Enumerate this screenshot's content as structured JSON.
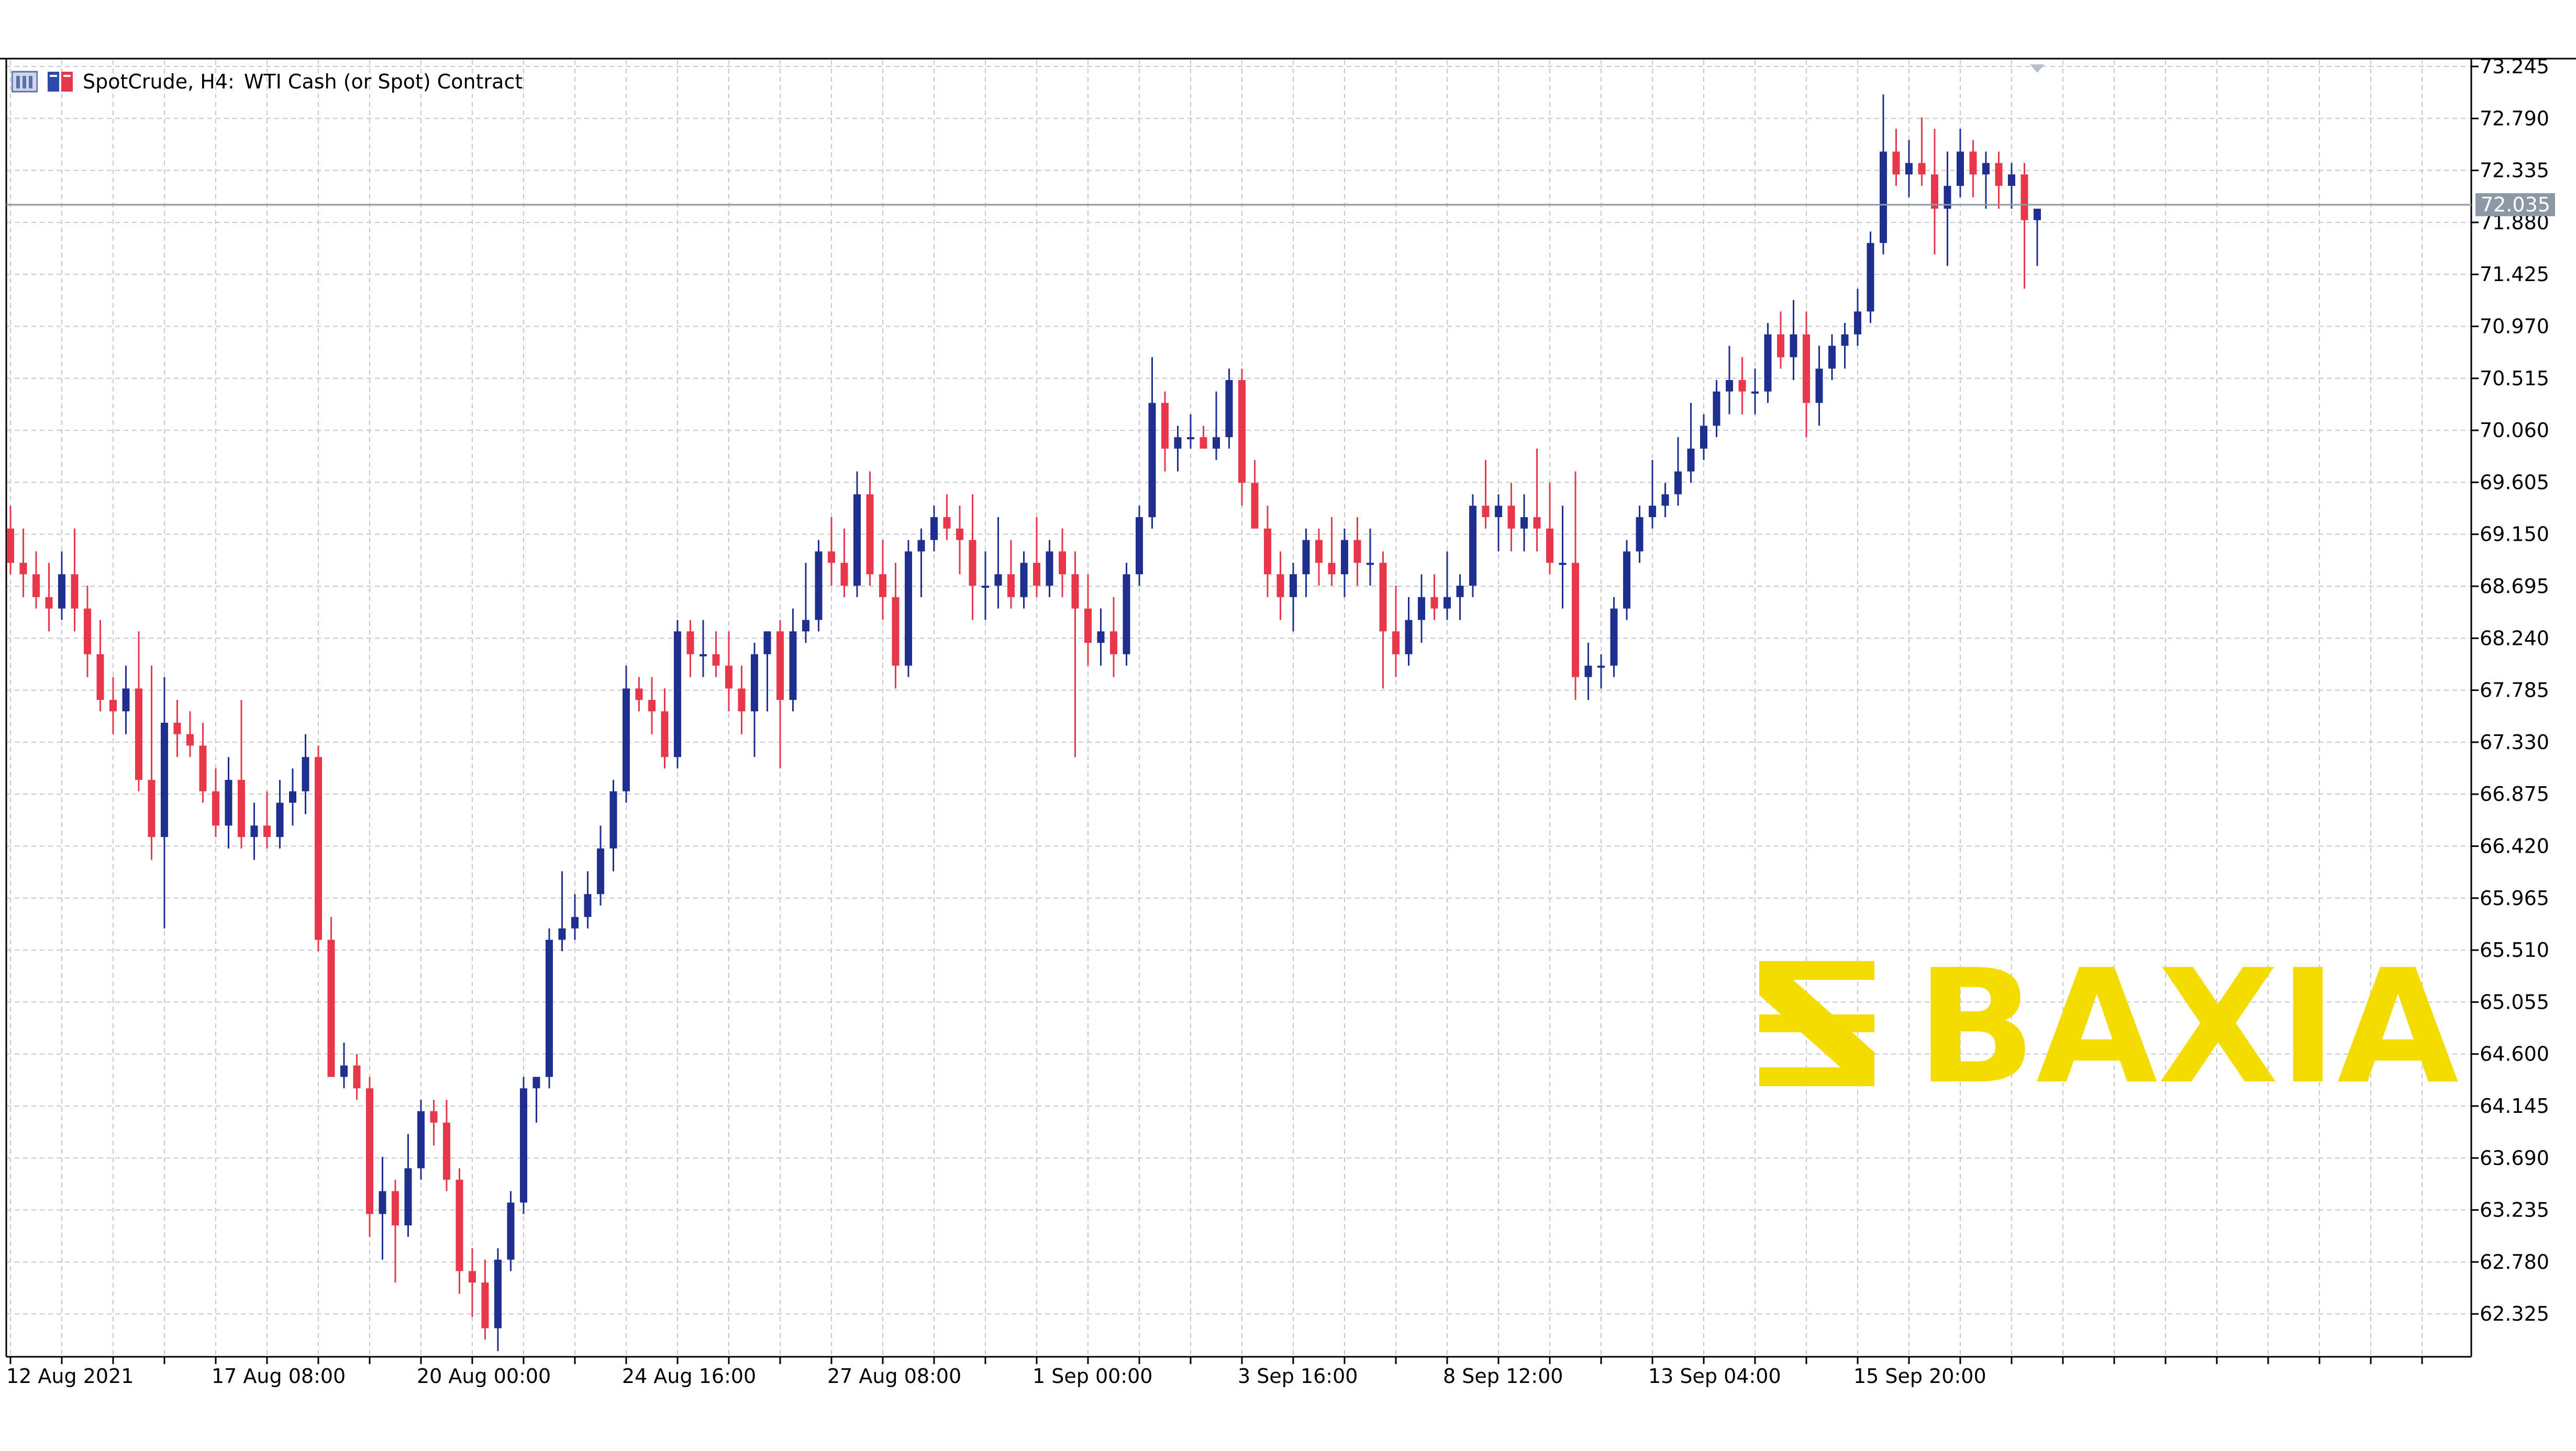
{
  "header": {
    "symbol": "SpotCrude, H4:",
    "description": "WTI Cash (or Spot) Contract"
  },
  "colors": {
    "bull": "#1f2f8f",
    "bear": "#e8364a",
    "grid": "#c6c9cc",
    "frame": "#000000",
    "price_line": "#8c98a4",
    "price_tag_bg": "#8c98a4",
    "watermark": "#f5dc00"
  },
  "watermark": {
    "text": "BAXIA",
    "icon": "baxia-logo-icon"
  },
  "current_price": {
    "label": "72.035",
    "value": 72.035
  },
  "chart_data": {
    "type": "candlestick",
    "timeframe": "H4",
    "ylim": [
      61.95,
      73.3
    ],
    "grid": true,
    "y_ticks": [
      73.245,
      72.79,
      72.335,
      71.88,
      71.425,
      70.97,
      70.515,
      70.06,
      69.605,
      69.15,
      68.695,
      68.24,
      67.785,
      67.33,
      66.875,
      66.42,
      65.965,
      65.51,
      65.055,
      64.6,
      64.145,
      63.69,
      63.235,
      62.78,
      62.325
    ],
    "y_tick_labels": [
      "73.245",
      "72.790",
      "72.335",
      "71.880",
      "71.425",
      "70.970",
      "70.515",
      "70.060",
      "69.605",
      "69.150",
      "68.695",
      "68.240",
      "67.785",
      "67.330",
      "66.875",
      "66.420",
      "65.965",
      "65.510",
      "65.055",
      "64.600",
      "64.145",
      "63.690",
      "63.235",
      "62.780",
      "62.325"
    ],
    "x_labels": [
      {
        "bar": 0,
        "text": "12 Aug 2021"
      },
      {
        "bar": 16,
        "text": "17 Aug 08:00"
      },
      {
        "bar": 32,
        "text": "20 Aug 00:00"
      },
      {
        "bar": 48,
        "text": "24 Aug 16:00"
      },
      {
        "bar": 64,
        "text": "27 Aug 08:00"
      },
      {
        "bar": 80,
        "text": "1 Sep 00:00"
      },
      {
        "bar": 96,
        "text": "3 Sep 16:00"
      },
      {
        "bar": 112,
        "text": "8 Sep 12:00"
      },
      {
        "bar": 128,
        "text": "13 Sep 04:00"
      },
      {
        "bar": 144,
        "text": "15 Sep 20:00"
      }
    ],
    "ohlc": [
      [
        69.2,
        69.4,
        68.8,
        68.9
      ],
      [
        68.9,
        69.2,
        68.6,
        68.8
      ],
      [
        68.8,
        69.0,
        68.5,
        68.6
      ],
      [
        68.6,
        68.9,
        68.3,
        68.5
      ],
      [
        68.5,
        69.0,
        68.4,
        68.8
      ],
      [
        68.8,
        69.2,
        68.3,
        68.5
      ],
      [
        68.5,
        68.7,
        67.9,
        68.1
      ],
      [
        68.1,
        68.4,
        67.6,
        67.7
      ],
      [
        67.7,
        67.9,
        67.4,
        67.6
      ],
      [
        67.6,
        68.0,
        67.4,
        67.8
      ],
      [
        67.8,
        68.3,
        66.9,
        67.0
      ],
      [
        67.0,
        68.0,
        66.3,
        66.5
      ],
      [
        66.5,
        67.9,
        65.7,
        67.5
      ],
      [
        67.5,
        67.7,
        67.2,
        67.4
      ],
      [
        67.4,
        67.6,
        67.2,
        67.3
      ],
      [
        67.3,
        67.5,
        66.8,
        66.9
      ],
      [
        66.9,
        67.1,
        66.5,
        66.6
      ],
      [
        66.6,
        67.2,
        66.4,
        67.0
      ],
      [
        67.0,
        67.7,
        66.4,
        66.5
      ],
      [
        66.5,
        66.8,
        66.3,
        66.6
      ],
      [
        66.6,
        66.9,
        66.4,
        66.5
      ],
      [
        66.5,
        67.0,
        66.4,
        66.8
      ],
      [
        66.8,
        67.1,
        66.6,
        66.9
      ],
      [
        66.9,
        67.4,
        66.7,
        67.2
      ],
      [
        67.2,
        67.3,
        65.5,
        65.6
      ],
      [
        65.6,
        65.8,
        64.4,
        64.4
      ],
      [
        64.4,
        64.7,
        64.3,
        64.5
      ],
      [
        64.5,
        64.6,
        64.2,
        64.3
      ],
      [
        64.3,
        64.4,
        63.0,
        63.2
      ],
      [
        63.2,
        63.7,
        62.8,
        63.4
      ],
      [
        63.4,
        63.5,
        62.6,
        63.1
      ],
      [
        63.1,
        63.9,
        63.0,
        63.6
      ],
      [
        63.6,
        64.2,
        63.5,
        64.1
      ],
      [
        64.1,
        64.2,
        63.8,
        64.0
      ],
      [
        64.0,
        64.2,
        63.4,
        63.5
      ],
      [
        63.5,
        63.6,
        62.5,
        62.7
      ],
      [
        62.7,
        62.9,
        62.3,
        62.6
      ],
      [
        62.6,
        62.8,
        62.1,
        62.2
      ],
      [
        62.2,
        62.9,
        62.0,
        62.8
      ],
      [
        62.8,
        63.4,
        62.7,
        63.3
      ],
      [
        63.3,
        64.4,
        63.2,
        64.3
      ],
      [
        64.3,
        64.4,
        64.0,
        64.4
      ],
      [
        64.4,
        65.7,
        64.3,
        65.6
      ],
      [
        65.6,
        66.2,
        65.5,
        65.7
      ],
      [
        65.7,
        66.0,
        65.6,
        65.8
      ],
      [
        65.8,
        66.2,
        65.7,
        66.0
      ],
      [
        66.0,
        66.6,
        65.9,
        66.4
      ],
      [
        66.4,
        67.0,
        66.2,
        66.9
      ],
      [
        66.9,
        68.0,
        66.8,
        67.8
      ],
      [
        67.8,
        67.9,
        67.6,
        67.7
      ],
      [
        67.7,
        67.9,
        67.4,
        67.6
      ],
      [
        67.6,
        67.8,
        67.1,
        67.2
      ],
      [
        67.2,
        68.4,
        67.1,
        68.3
      ],
      [
        68.3,
        68.4,
        67.9,
        68.1
      ],
      [
        68.1,
        68.4,
        67.9,
        68.1
      ],
      [
        68.1,
        68.3,
        67.9,
        68.0
      ],
      [
        68.0,
        68.3,
        67.6,
        67.8
      ],
      [
        67.8,
        68.0,
        67.4,
        67.6
      ],
      [
        67.6,
        68.2,
        67.2,
        68.1
      ],
      [
        68.1,
        68.3,
        67.6,
        68.3
      ],
      [
        68.3,
        68.4,
        67.1,
        67.7
      ],
      [
        67.7,
        68.5,
        67.6,
        68.3
      ],
      [
        68.3,
        68.9,
        68.2,
        68.4
      ],
      [
        68.4,
        69.1,
        68.3,
        69.0
      ],
      [
        69.0,
        69.3,
        68.7,
        68.9
      ],
      [
        68.9,
        69.2,
        68.6,
        68.7
      ],
      [
        68.7,
        69.7,
        68.6,
        69.5
      ],
      [
        69.5,
        69.7,
        68.7,
        68.8
      ],
      [
        68.8,
        69.1,
        68.4,
        68.6
      ],
      [
        68.6,
        68.9,
        67.8,
        68.0
      ],
      [
        68.0,
        69.1,
        67.9,
        69.0
      ],
      [
        69.0,
        69.2,
        68.6,
        69.1
      ],
      [
        69.1,
        69.4,
        69.0,
        69.3
      ],
      [
        69.3,
        69.5,
        69.1,
        69.2
      ],
      [
        69.2,
        69.4,
        68.8,
        69.1
      ],
      [
        69.1,
        69.5,
        68.4,
        68.7
      ],
      [
        68.7,
        69.0,
        68.4,
        68.7
      ],
      [
        68.7,
        69.3,
        68.5,
        68.8
      ],
      [
        68.8,
        69.1,
        68.5,
        68.6
      ],
      [
        68.6,
        69.0,
        68.5,
        68.9
      ],
      [
        68.9,
        69.3,
        68.6,
        68.7
      ],
      [
        68.7,
        69.1,
        68.6,
        69.0
      ],
      [
        69.0,
        69.2,
        68.6,
        68.8
      ],
      [
        68.8,
        69.0,
        67.2,
        68.5
      ],
      [
        68.5,
        68.8,
        68.0,
        68.2
      ],
      [
        68.2,
        68.5,
        68.0,
        68.3
      ],
      [
        68.3,
        68.6,
        67.9,
        68.1
      ],
      [
        68.1,
        68.9,
        68.0,
        68.8
      ],
      [
        68.8,
        69.4,
        68.7,
        69.3
      ],
      [
        69.3,
        70.7,
        69.2,
        70.3
      ],
      [
        70.3,
        70.4,
        69.7,
        69.9
      ],
      [
        69.9,
        70.1,
        69.7,
        70.0
      ],
      [
        70.0,
        70.2,
        69.9,
        70.0
      ],
      [
        70.0,
        70.1,
        69.9,
        69.9
      ],
      [
        69.9,
        70.4,
        69.8,
        70.0
      ],
      [
        70.0,
        70.6,
        69.9,
        70.5
      ],
      [
        70.5,
        70.6,
        69.4,
        69.6
      ],
      [
        69.6,
        69.8,
        69.2,
        69.2
      ],
      [
        69.2,
        69.4,
        68.6,
        68.8
      ],
      [
        68.8,
        69.0,
        68.4,
        68.6
      ],
      [
        68.6,
        68.9,
        68.3,
        68.8
      ],
      [
        68.8,
        69.2,
        68.6,
        69.1
      ],
      [
        69.1,
        69.2,
        68.7,
        68.9
      ],
      [
        68.9,
        69.3,
        68.7,
        68.8
      ],
      [
        68.8,
        69.2,
        68.6,
        69.1
      ],
      [
        69.1,
        69.3,
        68.7,
        68.9
      ],
      [
        68.9,
        69.2,
        68.7,
        68.9
      ],
      [
        68.9,
        69.0,
        67.8,
        68.3
      ],
      [
        68.3,
        68.7,
        67.9,
        68.1
      ],
      [
        68.1,
        68.6,
        68.0,
        68.4
      ],
      [
        68.4,
        68.8,
        68.2,
        68.6
      ],
      [
        68.6,
        68.8,
        68.4,
        68.5
      ],
      [
        68.5,
        69.0,
        68.4,
        68.6
      ],
      [
        68.6,
        68.8,
        68.4,
        68.7
      ],
      [
        68.7,
        69.5,
        68.6,
        69.4
      ],
      [
        69.4,
        69.8,
        69.2,
        69.3
      ],
      [
        69.3,
        69.5,
        69.0,
        69.4
      ],
      [
        69.4,
        69.6,
        69.0,
        69.2
      ],
      [
        69.2,
        69.5,
        69.0,
        69.3
      ],
      [
        69.3,
        69.9,
        69.0,
        69.2
      ],
      [
        69.2,
        69.6,
        68.8,
        68.9
      ],
      [
        68.9,
        69.4,
        68.5,
        68.9
      ],
      [
        68.9,
        69.7,
        67.7,
        67.9
      ],
      [
        67.9,
        68.2,
        67.7,
        68.0
      ],
      [
        68.0,
        68.1,
        67.8,
        68.0
      ],
      [
        68.0,
        68.6,
        67.9,
        68.5
      ],
      [
        68.5,
        69.1,
        68.4,
        69.0
      ],
      [
        69.0,
        69.4,
        68.9,
        69.3
      ],
      [
        69.3,
        69.8,
        69.2,
        69.4
      ],
      [
        69.4,
        69.6,
        69.3,
        69.5
      ],
      [
        69.5,
        70.0,
        69.4,
        69.7
      ],
      [
        69.7,
        70.3,
        69.6,
        69.9
      ],
      [
        69.9,
        70.2,
        69.8,
        70.1
      ],
      [
        70.1,
        70.5,
        70.0,
        70.4
      ],
      [
        70.4,
        70.8,
        70.2,
        70.5
      ],
      [
        70.5,
        70.7,
        70.2,
        70.4
      ],
      [
        70.4,
        70.6,
        70.2,
        70.4
      ],
      [
        70.4,
        71.0,
        70.3,
        70.9
      ],
      [
        70.9,
        71.1,
        70.6,
        70.7
      ],
      [
        70.7,
        71.2,
        70.5,
        70.9
      ],
      [
        70.9,
        71.1,
        70.0,
        70.3
      ],
      [
        70.3,
        70.8,
        70.1,
        70.6
      ],
      [
        70.6,
        70.9,
        70.5,
        70.8
      ],
      [
        70.8,
        71.0,
        70.6,
        70.9
      ],
      [
        70.9,
        71.3,
        70.8,
        71.1
      ],
      [
        71.1,
        71.8,
        71.0,
        71.7
      ],
      [
        71.7,
        73.0,
        71.6,
        72.5
      ],
      [
        72.5,
        72.7,
        72.2,
        72.3
      ],
      [
        72.3,
        72.6,
        72.1,
        72.4
      ],
      [
        72.4,
        72.8,
        72.2,
        72.3
      ],
      [
        72.3,
        72.7,
        71.6,
        72.0
      ],
      [
        72.0,
        72.5,
        71.5,
        72.2
      ],
      [
        72.2,
        72.7,
        72.1,
        72.5
      ],
      [
        72.5,
        72.6,
        72.1,
        72.3
      ],
      [
        72.3,
        72.5,
        72.0,
        72.4
      ],
      [
        72.4,
        72.5,
        72.0,
        72.2
      ],
      [
        72.2,
        72.4,
        72.0,
        72.3
      ],
      [
        72.3,
        72.4,
        71.3,
        71.9
      ],
      [
        71.9,
        72.0,
        71.5,
        72.0
      ]
    ]
  }
}
